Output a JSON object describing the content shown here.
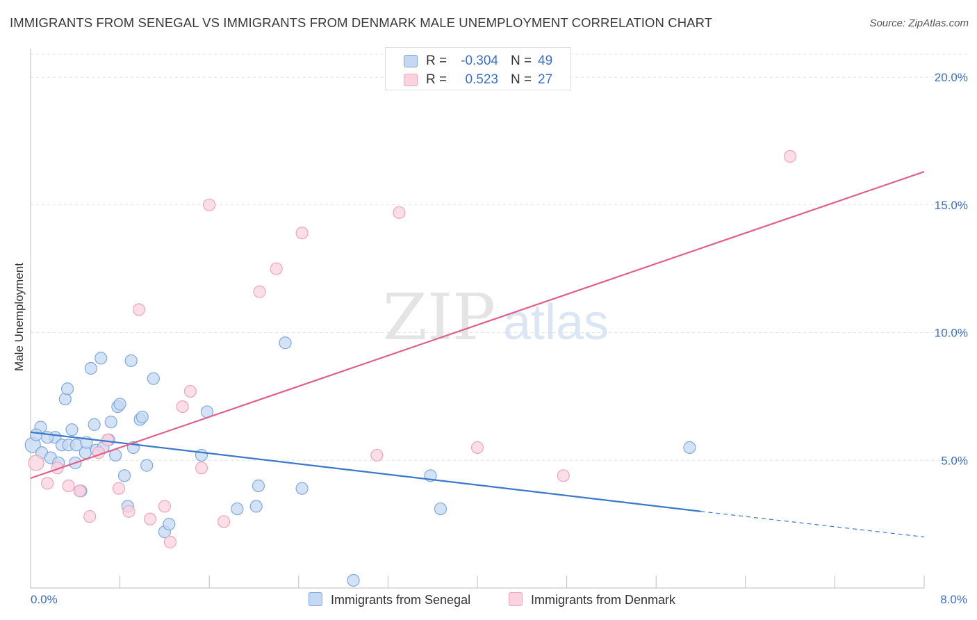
{
  "chart_data": {
    "type": "scatter",
    "title": "IMMIGRANTS FROM SENEGAL VS IMMIGRANTS FROM DENMARK MALE UNEMPLOYMENT CORRELATION CHART",
    "source": "Source: ZipAtlas.com",
    "ylabel": "Male Unemployment",
    "xlim": [
      0,
      8
    ],
    "ylim": [
      0,
      20
    ],
    "x_tick_labels": [
      "0.0%",
      "8.0%"
    ],
    "y_ticks": [
      {
        "value": 5,
        "label": "5.0%"
      },
      {
        "value": 10,
        "label": "10.0%"
      },
      {
        "value": 15,
        "label": "15.0%"
      },
      {
        "value": 20,
        "label": "20.0%"
      }
    ],
    "watermark": {
      "part1": "ZIP",
      "part2": "atlas"
    },
    "series": [
      {
        "name": "Immigrants from Senegal",
        "color": "#7fa8e0",
        "fill": "#c5d8f3",
        "line_color": "#3a78cc",
        "R": "-0.304",
        "N": "49",
        "trend": {
          "x0": 0.0,
          "y0": 6.1,
          "x1": 6.0,
          "y1": 3.0,
          "dashed_to_x": 8.0,
          "dashed_to_y": 2.0
        },
        "points": [
          [
            0.02,
            5.6
          ],
          [
            0.09,
            6.3
          ],
          [
            0.1,
            5.3
          ],
          [
            0.18,
            5.1
          ],
          [
            0.22,
            5.9
          ],
          [
            0.25,
            4.9
          ],
          [
            0.28,
            5.6
          ],
          [
            0.31,
            7.4
          ],
          [
            0.33,
            7.8
          ],
          [
            0.34,
            5.6
          ],
          [
            0.37,
            6.2
          ],
          [
            0.4,
            4.9
          ],
          [
            0.41,
            5.6
          ],
          [
            0.45,
            3.8
          ],
          [
            0.49,
            5.3
          ],
          [
            0.5,
            5.7
          ],
          [
            0.54,
            8.6
          ],
          [
            0.57,
            6.4
          ],
          [
            0.59,
            5.4
          ],
          [
            0.63,
            9.0
          ],
          [
            0.65,
            5.5
          ],
          [
            0.7,
            5.8
          ],
          [
            0.72,
            6.5
          ],
          [
            0.76,
            5.2
          ],
          [
            0.78,
            7.1
          ],
          [
            0.8,
            7.2
          ],
          [
            0.84,
            4.4
          ],
          [
            0.87,
            3.2
          ],
          [
            0.9,
            8.9
          ],
          [
            0.92,
            5.5
          ],
          [
            0.98,
            6.6
          ],
          [
            1.0,
            6.7
          ],
          [
            1.04,
            4.8
          ],
          [
            1.1,
            8.2
          ],
          [
            1.2,
            2.2
          ],
          [
            1.24,
            2.5
          ],
          [
            1.53,
            5.2
          ],
          [
            1.58,
            6.9
          ],
          [
            1.85,
            3.1
          ],
          [
            2.02,
            3.2
          ],
          [
            2.04,
            4.0
          ],
          [
            2.28,
            9.6
          ],
          [
            2.43,
            3.9
          ],
          [
            2.89,
            0.3
          ],
          [
            3.58,
            4.4
          ],
          [
            3.67,
            3.1
          ],
          [
            5.9,
            5.5
          ],
          [
            0.05,
            6.0
          ],
          [
            0.15,
            5.9
          ]
        ]
      },
      {
        "name": "Immigrants from Denmark",
        "color": "#f2a3bd",
        "fill": "#fbd3df",
        "line_color": "#e0608a",
        "R": "0.523",
        "N": "27",
        "trend": {
          "x0": 0.0,
          "y0": 4.3,
          "x1": 8.0,
          "y1": 16.3
        },
        "points": [
          [
            0.05,
            4.9
          ],
          [
            0.15,
            4.1
          ],
          [
            0.24,
            4.7
          ],
          [
            0.34,
            4.0
          ],
          [
            0.44,
            3.8
          ],
          [
            0.53,
            2.8
          ],
          [
            0.61,
            5.3
          ],
          [
            0.69,
            5.8
          ],
          [
            0.79,
            3.9
          ],
          [
            0.88,
            3.0
          ],
          [
            0.97,
            10.9
          ],
          [
            1.07,
            2.7
          ],
          [
            1.2,
            3.2
          ],
          [
            1.25,
            1.8
          ],
          [
            1.36,
            7.1
          ],
          [
            1.43,
            7.7
          ],
          [
            1.53,
            4.7
          ],
          [
            1.6,
            15.0
          ],
          [
            1.73,
            2.6
          ],
          [
            2.05,
            11.6
          ],
          [
            2.2,
            12.5
          ],
          [
            2.43,
            13.9
          ],
          [
            3.1,
            5.2
          ],
          [
            3.3,
            14.7
          ],
          [
            4.0,
            5.5
          ],
          [
            4.77,
            4.4
          ],
          [
            6.8,
            16.9
          ]
        ]
      }
    ]
  }
}
